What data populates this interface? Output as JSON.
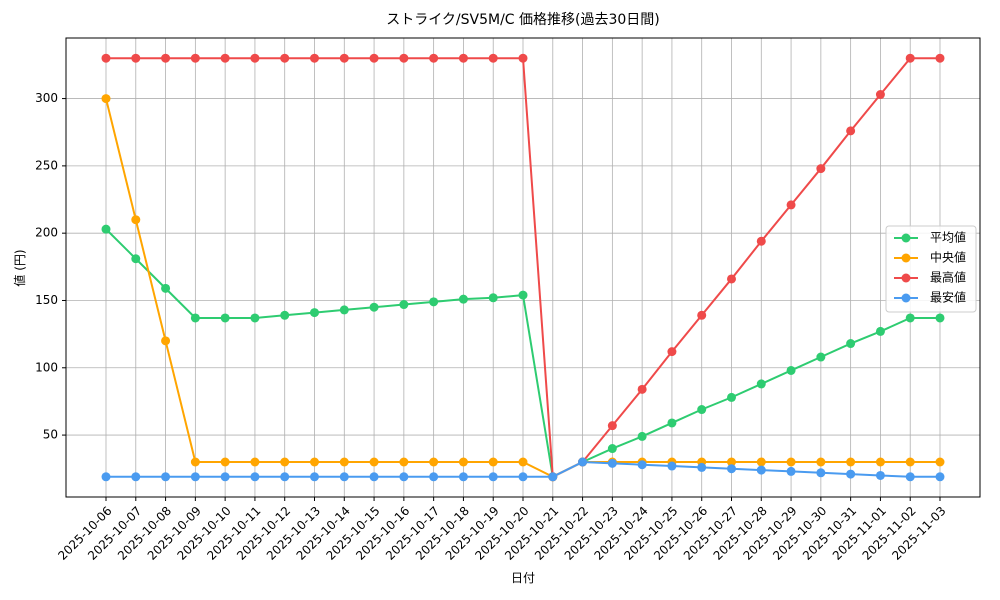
{
  "chart_data": {
    "type": "line",
    "title": "ストライク/SV5M/C 価格推移(過去30日間)",
    "x_label": "日付",
    "y_label": "値 (円)",
    "categories": [
      "2025-10-06",
      "2025-10-07",
      "2025-10-08",
      "2025-10-09",
      "2025-10-10",
      "2025-10-11",
      "2025-10-12",
      "2025-10-13",
      "2025-10-14",
      "2025-10-15",
      "2025-10-16",
      "2025-10-17",
      "2025-10-18",
      "2025-10-19",
      "2025-10-20",
      "2025-10-21",
      "2025-10-22",
      "2025-10-23",
      "2025-10-24",
      "2025-10-25",
      "2025-10-26",
      "2025-10-27",
      "2025-10-28",
      "2025-10-29",
      "2025-10-30",
      "2025-10-31",
      "2025-11-01",
      "2025-11-02",
      "2025-11-03"
    ],
    "series": [
      {
        "name": "平均値",
        "color": "#2ecc71",
        "values": [
          203,
          181,
          159,
          137,
          137,
          137,
          139,
          141,
          143,
          145,
          147,
          149,
          151,
          152,
          154,
          19,
          30,
          40,
          49,
          59,
          69,
          78,
          88,
          98,
          108,
          118,
          127,
          137,
          137
        ]
      },
      {
        "name": "中央値",
        "color": "#ffa500",
        "values": [
          300,
          210,
          120,
          30,
          30,
          30,
          30,
          30,
          30,
          30,
          30,
          30,
          30,
          30,
          30,
          19,
          30,
          30,
          30,
          30,
          30,
          30,
          30,
          30,
          30,
          30,
          30,
          30,
          30
        ]
      },
      {
        "name": "最高値",
        "color": "#ef4a4a",
        "values": [
          330,
          330,
          330,
          330,
          330,
          330,
          330,
          330,
          330,
          330,
          330,
          330,
          330,
          330,
          330,
          19,
          30,
          57,
          84,
          112,
          139,
          166,
          194,
          221,
          248,
          276,
          303,
          330,
          330
        ]
      },
      {
        "name": "最安値",
        "color": "#4a9bf0",
        "values": [
          19,
          19,
          19,
          19,
          19,
          19,
          19,
          19,
          19,
          19,
          19,
          19,
          19,
          19,
          19,
          19,
          30,
          29,
          28,
          27,
          26,
          25,
          24,
          23,
          22,
          21,
          20,
          19,
          19
        ]
      }
    ],
    "ylim": [
      4,
      345
    ],
    "yticks": [
      50,
      100,
      150,
      200,
      250,
      300
    ],
    "grid": true,
    "legend": "right"
  }
}
